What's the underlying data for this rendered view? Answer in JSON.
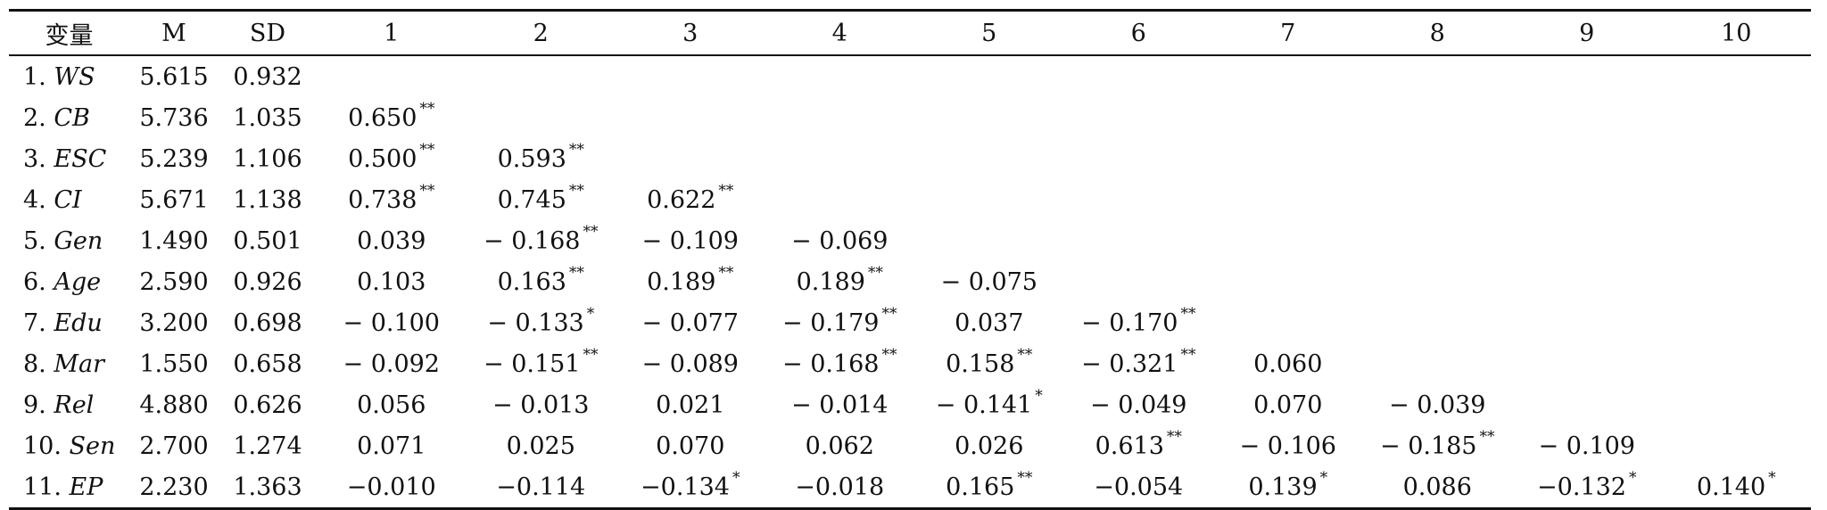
{
  "table": {
    "headers": [
      "变量",
      "M",
      "SD",
      "1",
      "2",
      "3",
      "4",
      "5",
      "6",
      "7",
      "8",
      "9",
      "10"
    ],
    "rows": [
      {
        "num": "1.",
        "name": "WS",
        "m": "5.615",
        "sd": "0.932",
        "cells": []
      },
      {
        "num": "2.",
        "name": "CB",
        "m": "5.736",
        "sd": "1.035",
        "cells": [
          {
            "v": "0.650",
            "s": "**"
          }
        ]
      },
      {
        "num": "3.",
        "name": "ESC",
        "m": "5.239",
        "sd": "1.106",
        "cells": [
          {
            "v": "0.500",
            "s": "**"
          },
          {
            "v": "0.593",
            "s": "**"
          }
        ]
      },
      {
        "num": "4.",
        "name": "CI",
        "m": "5.671",
        "sd": "1.138",
        "cells": [
          {
            "v": "0.738",
            "s": "**"
          },
          {
            "v": "0.745",
            "s": "**"
          },
          {
            "v": "0.622",
            "s": "**"
          }
        ]
      },
      {
        "num": "5.",
        "name": "Gen",
        "m": "1.490",
        "sd": "0.501",
        "cells": [
          {
            "v": "0.039",
            "s": ""
          },
          {
            "v": "− 0.168",
            "s": "**"
          },
          {
            "v": "− 0.109",
            "s": ""
          },
          {
            "v": "− 0.069",
            "s": ""
          }
        ]
      },
      {
        "num": "6.",
        "name": "Age",
        "m": "2.590",
        "sd": "0.926",
        "cells": [
          {
            "v": "0.103",
            "s": ""
          },
          {
            "v": "0.163",
            "s": "**"
          },
          {
            "v": "0.189",
            "s": "**"
          },
          {
            "v": "0.189",
            "s": "**"
          },
          {
            "v": "− 0.075",
            "s": ""
          }
        ]
      },
      {
        "num": "7.",
        "name": "Edu",
        "m": "3.200",
        "sd": "0.698",
        "cells": [
          {
            "v": "− 0.100",
            "s": ""
          },
          {
            "v": "− 0.133",
            "s": "*"
          },
          {
            "v": "− 0.077",
            "s": ""
          },
          {
            "v": "− 0.179",
            "s": "**"
          },
          {
            "v": "0.037",
            "s": ""
          },
          {
            "v": "− 0.170",
            "s": "**"
          }
        ]
      },
      {
        "num": "8.",
        "name": "Mar",
        "m": "1.550",
        "sd": "0.658",
        "cells": [
          {
            "v": "− 0.092",
            "s": ""
          },
          {
            "v": "− 0.151",
            "s": "**"
          },
          {
            "v": "− 0.089",
            "s": ""
          },
          {
            "v": "− 0.168",
            "s": "**"
          },
          {
            "v": "0.158",
            "s": "**"
          },
          {
            "v": "− 0.321",
            "s": "**"
          },
          {
            "v": "0.060",
            "s": ""
          }
        ]
      },
      {
        "num": "9.",
        "name": "Rel",
        "m": "4.880",
        "sd": "0.626",
        "cells": [
          {
            "v": "0.056",
            "s": ""
          },
          {
            "v": "− 0.013",
            "s": ""
          },
          {
            "v": "0.021",
            "s": ""
          },
          {
            "v": "− 0.014",
            "s": ""
          },
          {
            "v": "− 0.141",
            "s": "*"
          },
          {
            "v": "− 0.049",
            "s": ""
          },
          {
            "v": "0.070",
            "s": ""
          },
          {
            "v": "− 0.039",
            "s": ""
          }
        ]
      },
      {
        "num": "10.",
        "name": "Sen",
        "m": "2.700",
        "sd": "1.274",
        "cells": [
          {
            "v": "0.071",
            "s": ""
          },
          {
            "v": "0.025",
            "s": ""
          },
          {
            "v": "0.070",
            "s": ""
          },
          {
            "v": "0.062",
            "s": ""
          },
          {
            "v": "0.026",
            "s": ""
          },
          {
            "v": "0.613",
            "s": "**"
          },
          {
            "v": "− 0.106",
            "s": ""
          },
          {
            "v": "− 0.185",
            "s": "**"
          },
          {
            "v": "− 0.109",
            "s": ""
          }
        ]
      },
      {
        "num": "11.",
        "name": "EP",
        "m": "2.230",
        "sd": "1.363",
        "cells": [
          {
            "v": "−0.010",
            "s": ""
          },
          {
            "v": "−0.114",
            "s": ""
          },
          {
            "v": "−0.134",
            "s": "*"
          },
          {
            "v": "−0.018",
            "s": ""
          },
          {
            "v": "0.165",
            "s": "**"
          },
          {
            "v": "−0.054",
            "s": ""
          },
          {
            "v": "0.139",
            "s": "*"
          },
          {
            "v": "0.086",
            "s": ""
          },
          {
            "v": "−0.132",
            "s": "*"
          },
          {
            "v": "0.140",
            "s": "*"
          }
        ]
      }
    ]
  }
}
